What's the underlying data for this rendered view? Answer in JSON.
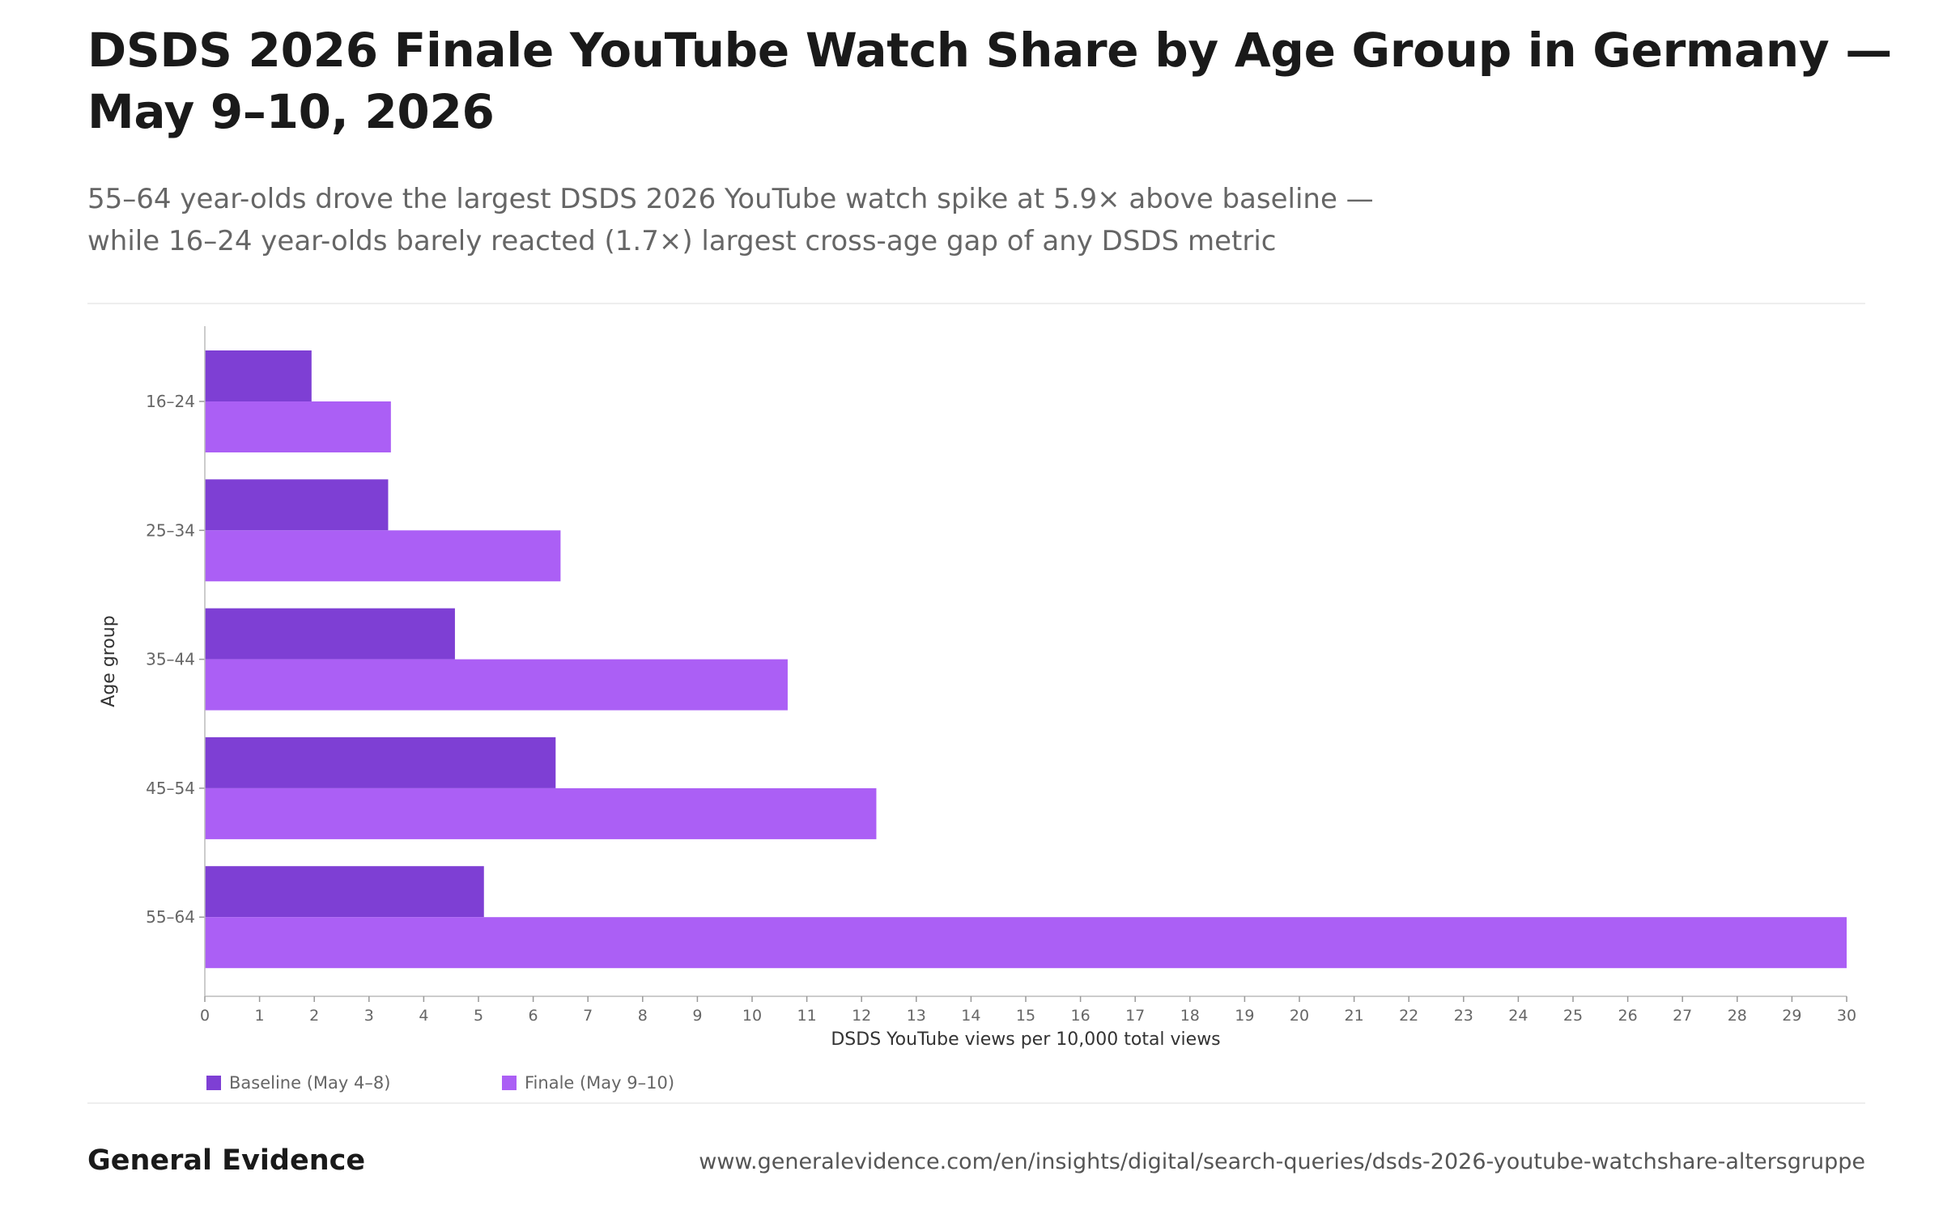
{
  "header": {
    "title": "DSDS 2026 Finale YouTube Watch Share by Age Group in Germany — May 9–10, 2026",
    "subtitle_line1": "55–64 year-olds drove the largest DSDS 2026 YouTube watch spike at 5.9× above baseline —",
    "subtitle_line2": "while 16–24 year-olds barely reacted (1.7×) largest cross-age gap of any DSDS metric"
  },
  "chart_data": {
    "type": "bar",
    "orientation": "horizontal",
    "categories": [
      "16–24",
      "25–34",
      "35–44",
      "45–54",
      "55–64"
    ],
    "series": [
      {
        "name": "Baseline (May 4–8)",
        "color": "#7e3fd4",
        "values": [
          1.95,
          3.35,
          4.57,
          6.41,
          5.1
        ]
      },
      {
        "name": "Finale (May 9–10)",
        "color": "#ab5ff5",
        "values": [
          3.4,
          6.5,
          10.65,
          12.27,
          30.0
        ]
      }
    ],
    "xlabel": "DSDS YouTube views per 10,000 total views",
    "ylabel": "Age group",
    "xlim": [
      0,
      30
    ],
    "xticks": [
      "0",
      "1",
      "2",
      "3",
      "4",
      "5",
      "6",
      "7",
      "8",
      "9",
      "10",
      "11",
      "12",
      "13",
      "14",
      "15",
      "16",
      "17",
      "18",
      "19",
      "20",
      "21",
      "22",
      "23",
      "24",
      "25",
      "26",
      "27",
      "28",
      "29",
      "30"
    ],
    "grid": false,
    "legend_position": "bottom-left"
  },
  "footer": {
    "brand": "General Evidence",
    "url": "www.generalevidence.com/en/insights/digital/search-queries/dsds-2026-youtube-watchshare-altersgruppe"
  }
}
